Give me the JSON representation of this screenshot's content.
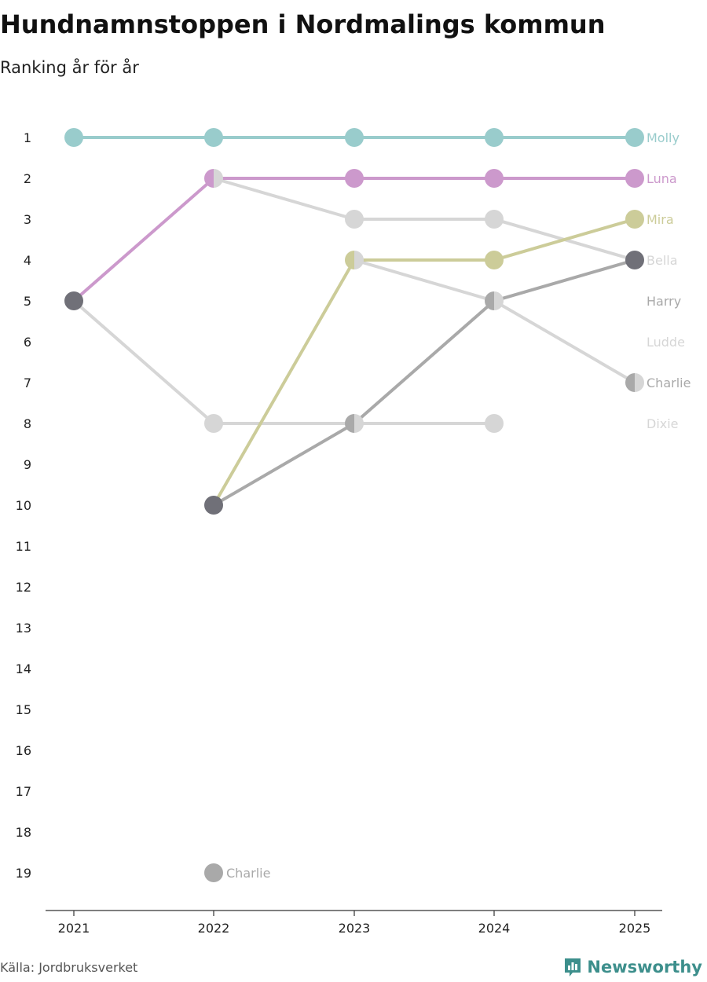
{
  "header": {
    "title": "Hundnamnstoppen i Nordmalings kommun",
    "subtitle": "Ranking år för år"
  },
  "footer": {
    "source": "Källa: Jordbruksverket",
    "brand": "Newsworthy"
  },
  "colors": {
    "axis": "#333333",
    "tick_label": "#222222"
  },
  "chart_data": {
    "type": "line",
    "title": "Hundnamnstoppen i Nordmalings kommun",
    "subtitle": "Ranking år för år",
    "xlabel": "",
    "ylabel": "",
    "x": [
      "2021",
      "2022",
      "2023",
      "2024",
      "2025"
    ],
    "y_ticks": [
      "1",
      "2",
      "3",
      "4",
      "5",
      "6",
      "7",
      "8",
      "9",
      "10",
      "11",
      "12",
      "13",
      "14",
      "15",
      "16",
      "17",
      "18",
      "19"
    ],
    "ylim": [
      1,
      19
    ],
    "y_reversed": true,
    "grid": false,
    "series": [
      {
        "name": "Ludde",
        "color": "#d6d6d6",
        "ranks": [
          5,
          8,
          8,
          8,
          null
        ]
      },
      {
        "name": "Dixie",
        "color": "#d6d6d6",
        "ranks": [
          null,
          null,
          null,
          null,
          null
        ]
      },
      {
        "name": "Bella",
        "color": "#d6d6d6",
        "ranks": [
          null,
          2,
          3,
          3,
          4
        ]
      },
      {
        "name": "Charlie",
        "color": "#d6d6d6",
        "ranks": [
          null,
          null,
          4,
          5,
          7
        ]
      },
      {
        "name": "Charlie",
        "color": "#a9a9a9",
        "ranks": [
          null,
          19,
          null,
          null,
          null
        ],
        "label": "Charlie"
      },
      {
        "name": "Harry",
        "color": "#a9a9a9",
        "ranks": [
          null,
          10,
          8,
          5,
          4
        ]
      },
      {
        "name": "Mira",
        "color": "#cccc99",
        "ranks": [
          null,
          10,
          4,
          4,
          3
        ]
      },
      {
        "name": "Luna",
        "color": "#cc99cc",
        "ranks": [
          5,
          2,
          2,
          2,
          2
        ]
      },
      {
        "name": "Molly",
        "color": "#99cccc",
        "ranks": [
          1,
          1,
          1,
          1,
          1
        ]
      }
    ],
    "end_labels": [
      {
        "name": "Molly",
        "rank": 1,
        "color": "#99cccc"
      },
      {
        "name": "Luna",
        "rank": 2,
        "color": "#cc99cc"
      },
      {
        "name": "Mira",
        "rank": 3,
        "color": "#cccc99"
      },
      {
        "name": "Bella",
        "rank": 4,
        "color": "#d6d6d6"
      },
      {
        "name": "Harry",
        "rank": 5,
        "color": "#a9a9a9"
      },
      {
        "name": "Ludde",
        "rank": 6,
        "color": "#d6d6d6"
      },
      {
        "name": "Charlie",
        "rank": 7,
        "color": "#a9a9a9"
      },
      {
        "name": "Dixie",
        "rank": 8,
        "color": "#d6d6d6"
      }
    ],
    "markers": [
      {
        "year": "2021",
        "rank": 1,
        "left": "#99cccc",
        "right": "#99cccc"
      },
      {
        "year": "2021",
        "rank": 5,
        "left": "#707078",
        "right": "#707078"
      },
      {
        "year": "2022",
        "rank": 1,
        "left": "#99cccc",
        "right": "#99cccc"
      },
      {
        "year": "2022",
        "rank": 2,
        "left": "#cc99cc",
        "right": "#d6d6d6"
      },
      {
        "year": "2022",
        "rank": 8,
        "left": "#d6d6d6",
        "right": "#d6d6d6"
      },
      {
        "year": "2022",
        "rank": 10,
        "left": "#707078",
        "right": "#707078"
      },
      {
        "year": "2022",
        "rank": 19,
        "left": "#a9a9a9",
        "right": "#a9a9a9"
      },
      {
        "year": "2023",
        "rank": 1,
        "left": "#99cccc",
        "right": "#99cccc"
      },
      {
        "year": "2023",
        "rank": 2,
        "left": "#cc99cc",
        "right": "#cc99cc"
      },
      {
        "year": "2023",
        "rank": 3,
        "left": "#d6d6d6",
        "right": "#d6d6d6"
      },
      {
        "year": "2023",
        "rank": 4,
        "left": "#cccc99",
        "right": "#d6d6d6"
      },
      {
        "year": "2023",
        "rank": 8,
        "left": "#a9a9a9",
        "right": "#d6d6d6"
      },
      {
        "year": "2024",
        "rank": 1,
        "left": "#99cccc",
        "right": "#99cccc"
      },
      {
        "year": "2024",
        "rank": 2,
        "left": "#cc99cc",
        "right": "#cc99cc"
      },
      {
        "year": "2024",
        "rank": 3,
        "left": "#d6d6d6",
        "right": "#d6d6d6"
      },
      {
        "year": "2024",
        "rank": 4,
        "left": "#cccc99",
        "right": "#cccc99"
      },
      {
        "year": "2024",
        "rank": 5,
        "left": "#a9a9a9",
        "right": "#d6d6d6"
      },
      {
        "year": "2024",
        "rank": 8,
        "left": "#d6d6d6",
        "right": "#d6d6d6"
      },
      {
        "year": "2025",
        "rank": 1,
        "left": "#99cccc",
        "right": "#99cccc"
      },
      {
        "year": "2025",
        "rank": 2,
        "left": "#cc99cc",
        "right": "#cc99cc"
      },
      {
        "year": "2025",
        "rank": 3,
        "left": "#cccc99",
        "right": "#cccc99"
      },
      {
        "year": "2025",
        "rank": 4,
        "left": "#707078",
        "right": "#707078"
      },
      {
        "year": "2025",
        "rank": 7,
        "left": "#a9a9a9",
        "right": "#d6d6d6"
      }
    ]
  }
}
